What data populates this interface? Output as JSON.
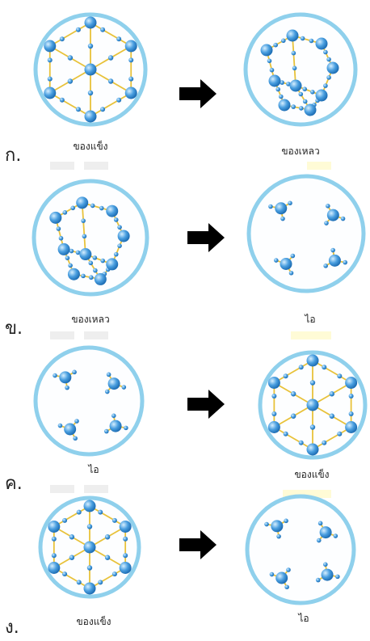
{
  "panels": [
    {
      "letter": "ก.",
      "left_label": "ของแข็ง",
      "right_label": "ของเหลว",
      "left_state": "solid",
      "right_state": "liquid"
    },
    {
      "letter": "ข.",
      "left_label": "ของเหลว",
      "right_label": "ไอ",
      "left_state": "liquid",
      "right_state": "gas"
    },
    {
      "letter": "ค.",
      "left_label": "ไอ",
      "right_label": "ของแข็ง",
      "left_state": "gas",
      "right_state": "solid"
    },
    {
      "letter": "ง.",
      "left_label": "ของแข็ง",
      "right_label": "ไอ",
      "left_state": "solid",
      "right_state": "gas"
    }
  ],
  "icons": {
    "arrow": "right-arrow-icon"
  },
  "colors": {
    "circle_border": "#8fd0ec",
    "bond": "#e8c23a",
    "molecule": "#4a9fe0",
    "arrow": "#000000"
  }
}
